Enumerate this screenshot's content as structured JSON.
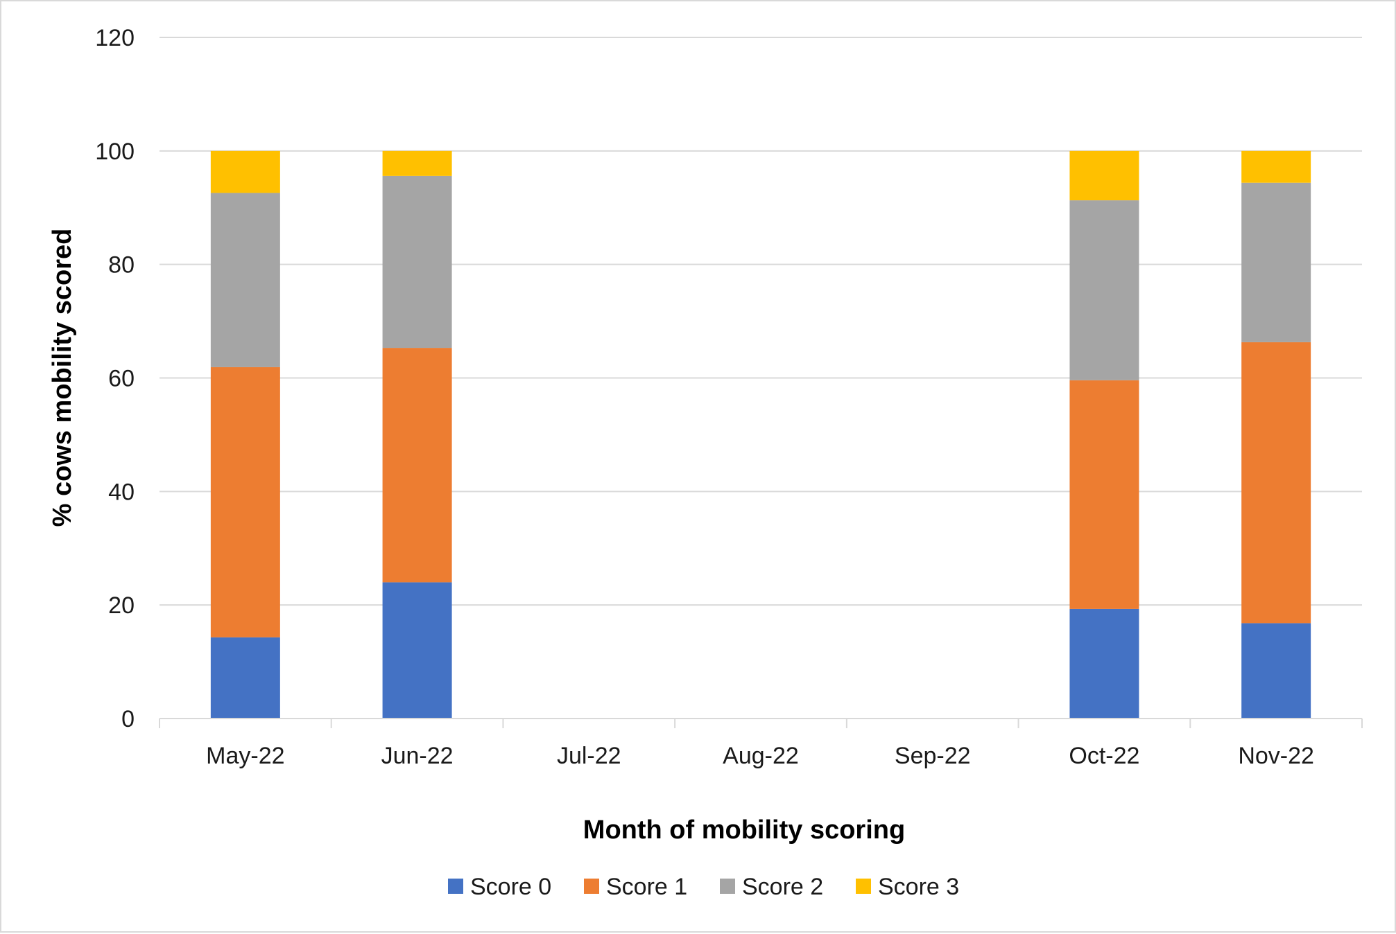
{
  "chart_data": {
    "type": "bar",
    "stacked": true,
    "categories": [
      "May-22",
      "Jun-22",
      "Jul-22",
      "Aug-22",
      "Sep-22",
      "Oct-22",
      "Nov-22"
    ],
    "series": [
      {
        "name": "Score 0",
        "color": "#4472c4",
        "values": [
          14.3,
          24.0,
          null,
          null,
          null,
          19.3,
          16.8
        ]
      },
      {
        "name": "Score 1",
        "color": "#ed7d31",
        "values": [
          47.6,
          41.3,
          null,
          null,
          null,
          40.3,
          49.5
        ]
      },
      {
        "name": "Score 2",
        "color": "#a5a5a5",
        "values": [
          30.7,
          30.3,
          null,
          null,
          null,
          31.7,
          28.1
        ]
      },
      {
        "name": "Score 3",
        "color": "#ffc000",
        "values": [
          7.4,
          4.4,
          null,
          null,
          null,
          8.7,
          5.6
        ]
      }
    ],
    "xlabel": "Month of mobility scoring",
    "ylabel": "% cows mobility scored",
    "ylim": [
      0,
      120
    ],
    "yticks": [
      "0",
      "20",
      "40",
      "60",
      "80",
      "100",
      "120"
    ],
    "grid": true,
    "legend": "bottom-center"
  }
}
